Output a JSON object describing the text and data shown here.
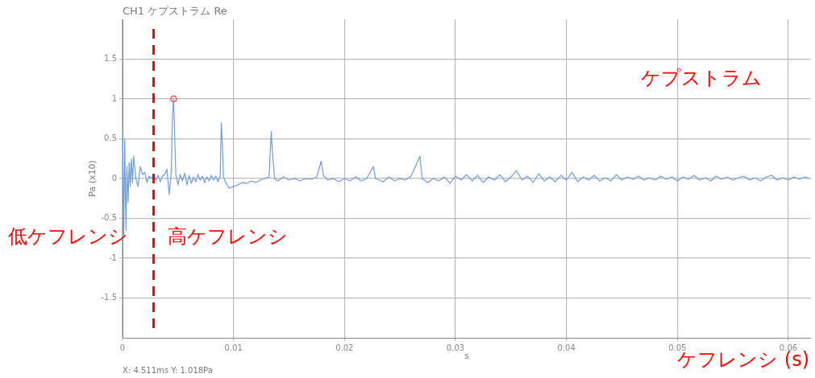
{
  "chart_data": {
    "type": "line",
    "title": "CH1 ケプストラム Re",
    "xlabel": "s",
    "ylabel": "Pa (x10)",
    "xlim": [
      0,
      0.062
    ],
    "xticks": [
      {
        "value": 0,
        "label": "0"
      },
      0.01,
      0.02,
      0.03,
      0.04,
      0.05,
      0.06
    ],
    "ylim": [
      -2,
      2
    ],
    "yticks": [
      -1.5,
      -1,
      -0.5,
      0,
      0.5,
      1,
      1.5
    ],
    "grid": true,
    "legend": false,
    "marker": "none",
    "line_style": "solid",
    "ref_lines": [
      {
        "axis": "x",
        "value": 0.0028,
        "color": "#ff0000",
        "line_style": "dashed"
      }
    ],
    "annotations": [
      "ケプストラム",
      "低ケフレンシ",
      "高ケフレンシ",
      "ケフレンシ (s)",
      "X: 4.511ms Y: 1.018Pa"
    ],
    "series": [
      {
        "color": "#6f9ddd",
        "x": [
          0,
          0.0001,
          0.0002,
          0.0003,
          0.0004,
          0.0005,
          0.0006,
          0.0007,
          0.0008,
          0.0009,
          0.001,
          0.0012,
          0.0014,
          0.0016,
          0.0018,
          0.002,
          0.0022,
          0.0024,
          0.0026,
          0.0028,
          0.003,
          0.0032,
          0.0034,
          0.0036,
          0.0038,
          0.004,
          0.0042,
          0.0044,
          0.0045,
          0.0046,
          0.0047,
          0.0048,
          0.005,
          0.0052,
          0.0054,
          0.0056,
          0.0058,
          0.006,
          0.0062,
          0.0064,
          0.0066,
          0.0068,
          0.007,
          0.0072,
          0.0074,
          0.0076,
          0.0078,
          0.008,
          0.0082,
          0.0084,
          0.0086,
          0.0088,
          0.0089,
          0.009,
          0.0091,
          0.0093,
          0.0096,
          0.01,
          0.0104,
          0.0108,
          0.0112,
          0.0116,
          0.012,
          0.0124,
          0.0128,
          0.0132,
          0.0134,
          0.0135,
          0.0137,
          0.014,
          0.0145,
          0.015,
          0.0155,
          0.016,
          0.0165,
          0.017,
          0.0175,
          0.0179,
          0.0181,
          0.0185,
          0.019,
          0.0195,
          0.02,
          0.0205,
          0.021,
          0.0215,
          0.022,
          0.0226,
          0.0228,
          0.0235,
          0.024,
          0.0245,
          0.025,
          0.0255,
          0.026,
          0.0268,
          0.027,
          0.0275,
          0.028,
          0.0285,
          0.029,
          0.0295,
          0.03,
          0.0305,
          0.031,
          0.0315,
          0.032,
          0.0325,
          0.033,
          0.0335,
          0.034,
          0.0345,
          0.035,
          0.0355,
          0.036,
          0.0365,
          0.037,
          0.0375,
          0.038,
          0.0385,
          0.039,
          0.0395,
          0.04,
          0.0405,
          0.041,
          0.0415,
          0.042,
          0.0425,
          0.043,
          0.0435,
          0.044,
          0.0445,
          0.045,
          0.0455,
          0.046,
          0.0465,
          0.047,
          0.0475,
          0.048,
          0.0485,
          0.049,
          0.0495,
          0.05,
          0.0505,
          0.051,
          0.0515,
          0.052,
          0.0525,
          0.053,
          0.0535,
          0.054,
          0.0545,
          0.055,
          0.0555,
          0.056,
          0.0565,
          0.057,
          0.0575,
          0.058,
          0.0585,
          0.059,
          0.0595,
          0.06,
          0.0605,
          0.061,
          0.0615,
          0.062
        ],
        "values": [
          0.65,
          -0.7,
          0.5,
          -0.65,
          0.15,
          -0.3,
          0.2,
          -0.1,
          0.25,
          -0.05,
          0.28,
          0,
          -0.1,
          0.15,
          0.05,
          0.08,
          -0.05,
          0.03,
          0,
          0.05,
          -0.02,
          0.04,
          -0.04,
          0.03,
          0.05,
          0.12,
          -0.2,
          0.1,
          0.8,
          1,
          0.55,
          0.05,
          -0.08,
          0.05,
          -0.03,
          0.07,
          -0.08,
          0.04,
          -0.06,
          0.02,
          -0.04,
          0.05,
          -0.02,
          0.03,
          -0.05,
          0.02,
          -0.03,
          0.04,
          -0.02,
          0.03,
          -0.04,
          0.03,
          0.7,
          0.4,
          0.02,
          -0.05,
          -0.12,
          -0.1,
          -0.08,
          -0.05,
          -0.06,
          -0.03,
          -0.05,
          -0.02,
          0,
          0.02,
          0.59,
          0.35,
          0,
          -0.03,
          0.02,
          -0.02,
          0,
          -0.03,
          0,
          -0.01,
          0.02,
          0.22,
          0.04,
          -0.02,
          0,
          -0.04,
          0,
          -0.03,
          0.02,
          -0.03,
          0,
          0.15,
          0,
          -0.04,
          0.02,
          -0.03,
          0,
          -0.02,
          0.03,
          0.28,
          0,
          -0.05,
          0,
          -0.03,
          0.02,
          -0.06,
          0.03,
          -0.02,
          0.05,
          -0.03,
          0.04,
          -0.05,
          0.02,
          -0.02,
          0.05,
          -0.04,
          0.02,
          0.1,
          -0.02,
          0.03,
          -0.05,
          0.06,
          -0.03,
          0.02,
          -0.04,
          0.04,
          -0.02,
          0.08,
          -0.04,
          0.02,
          -0.02,
          0.04,
          -0.03,
          0.01,
          -0.03,
          0.05,
          -0.02,
          0.02,
          -0.01,
          0.03,
          -0.02,
          0.01,
          -0.02,
          0.03,
          -0.01,
          0.02,
          -0.03,
          0.02,
          -0.01,
          0.04,
          -0.02,
          0.01,
          -0.03,
          0.03,
          -0.01,
          0.02,
          -0.02,
          0.01,
          0.03,
          -0.02,
          0.01,
          -0.03,
          0.02,
          0.04,
          -0.02,
          0.01,
          -0.02,
          0.02,
          -0.01,
          0.02,
          0
        ]
      },
      {
        "type": "scatter",
        "color": "#ff5050",
        "marker": "circle",
        "x": [
          0.0046
        ],
        "values": [
          1
        ]
      }
    ]
  }
}
